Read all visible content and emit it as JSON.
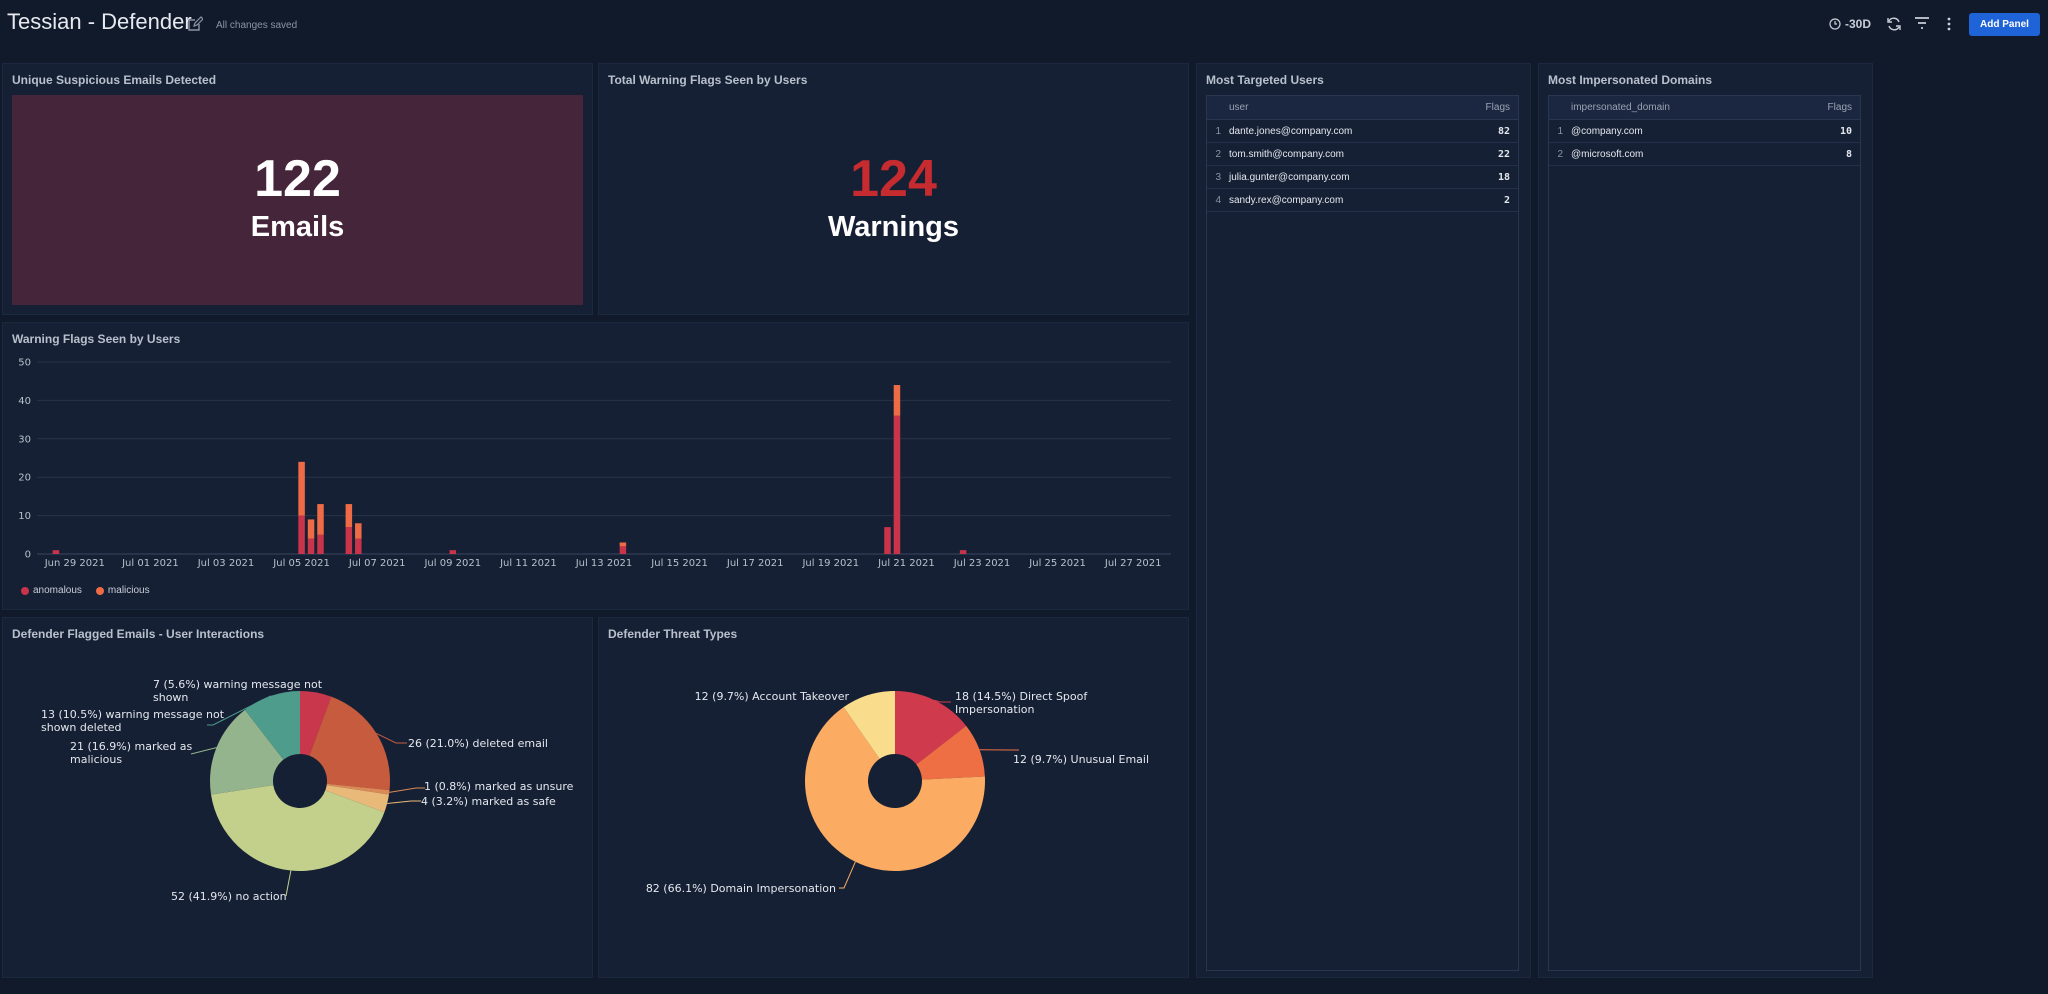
{
  "header": {
    "title": "Tessian - Defender",
    "save_status": "All changes saved",
    "time_range": "-30D",
    "add_panel_label": "Add Panel"
  },
  "icons": {
    "edit": "edit-icon",
    "clock": "clock-icon",
    "refresh": "refresh-icon",
    "filter": "filter-icon",
    "more": "more-vertical-icon"
  },
  "colors": {
    "background": "#111a2b",
    "panel": "#162034",
    "accent_button": "#1f63d8",
    "emails_box": "#45253a",
    "warnings_number": "#c62b2f",
    "anomalous": "#c9344a",
    "malicious": "#ee6b45"
  },
  "emails_panel": {
    "title": "Unique Suspicious Emails Detected",
    "value": "122",
    "unit": "Emails"
  },
  "warnings_panel": {
    "title": "Total Warning Flags Seen by Users",
    "value": "124",
    "unit": "Warnings"
  },
  "targeted_users": {
    "title": "Most Targeted Users",
    "columns": [
      "user",
      "Flags"
    ],
    "rows": [
      {
        "idx": "1",
        "name": "dante.jones@company.com",
        "flags": "82"
      },
      {
        "idx": "2",
        "name": "tom.smith@company.com",
        "flags": "22"
      },
      {
        "idx": "3",
        "name": "julia.gunter@company.com",
        "flags": "18"
      },
      {
        "idx": "4",
        "name": "sandy.rex@company.com",
        "flags": "2"
      }
    ]
  },
  "impersonated_domains": {
    "title": "Most Impersonated Domains",
    "columns": [
      "impersonated_domain",
      "Flags"
    ],
    "rows": [
      {
        "idx": "1",
        "name": "@company.com",
        "flags": "10"
      },
      {
        "idx": "2",
        "name": "@microsoft.com",
        "flags": "8"
      }
    ]
  },
  "warning_flags_panel": {
    "title": "Warning Flags Seen by Users"
  },
  "interactions_panel": {
    "title": "Defender Flagged Emails - User Interactions"
  },
  "threat_types_panel": {
    "title": "Defender Threat Types"
  },
  "chart_data": [
    {
      "type": "bar",
      "stacked": true,
      "ylim": [
        0,
        50
      ],
      "yticks": [
        0,
        10,
        20,
        30,
        40,
        50
      ],
      "grid": true,
      "legend_position": "bottom-left",
      "x_tick_labels": [
        "Jun 29 2021",
        "Jul 01 2021",
        "Jul 03 2021",
        "Jul 05 2021",
        "Jul 07 2021",
        "Jul 09 2021",
        "Jul 11 2021",
        "Jul 13 2021",
        "Jul 15 2021",
        "Jul 17 2021",
        "Jul 19 2021",
        "Jul 21 2021",
        "Jul 23 2021",
        "Jul 25 2021",
        "Jul 27 2021"
      ],
      "categories": [
        "2021-06-28T12:00",
        "2021-07-05T00:00",
        "2021-07-05T06:00",
        "2021-07-05T12:00",
        "2021-07-05T18:00",
        "2021-07-06T06:00",
        "2021-07-06T12:00",
        "2021-07-09T00:00",
        "2021-07-13T12:00",
        "2021-07-20T12:00",
        "2021-07-20T18:00",
        "2021-07-22T12:00"
      ],
      "series": [
        {
          "name": "anomalous",
          "color": "#c9344a",
          "values": [
            1,
            10,
            4,
            5,
            0,
            7,
            4,
            1,
            2,
            7,
            36,
            1
          ]
        },
        {
          "name": "malicious",
          "color": "#ee6b45",
          "values": [
            0,
            14,
            5,
            8,
            0,
            6,
            4,
            0,
            1,
            0,
            8,
            0
          ]
        }
      ]
    },
    {
      "type": "pie",
      "donut": true,
      "slices": [
        {
          "label": "7 (5.6%) warning message not shown",
          "value": 7,
          "color": "#c9374d"
        },
        {
          "label": "26 (21.0%) deleted email",
          "value": 26,
          "color": "#c75b3e"
        },
        {
          "label": "1 (0.8%) marked as unsure",
          "value": 1,
          "color": "#dc8a55"
        },
        {
          "label": "4 (3.2%) marked as safe",
          "value": 4,
          "color": "#e9b97a"
        },
        {
          "label": "52 (41.9%) no action",
          "value": 52,
          "color": "#c2d08b"
        },
        {
          "label": "21 (16.9%) marked as malicious",
          "value": 21,
          "color": "#94b48e"
        },
        {
          "label": "13 (10.5%) warning message not shown deleted",
          "value": 13,
          "color": "#4e9c8b"
        }
      ]
    },
    {
      "type": "pie",
      "donut": true,
      "slices": [
        {
          "label": "18 (14.5%) Direct Spoof Impersonation",
          "value": 18,
          "color": "#cf3a4c"
        },
        {
          "label": "12 (9.7%) Unusual Email",
          "value": 12,
          "color": "#ef6f45"
        },
        {
          "label": "82 (66.1%) Domain Impersonation",
          "value": 82,
          "color": "#fbac62"
        },
        {
          "label": "12 (9.7%) Account Takeover",
          "value": 12,
          "color": "#f9dd8c"
        }
      ]
    }
  ]
}
